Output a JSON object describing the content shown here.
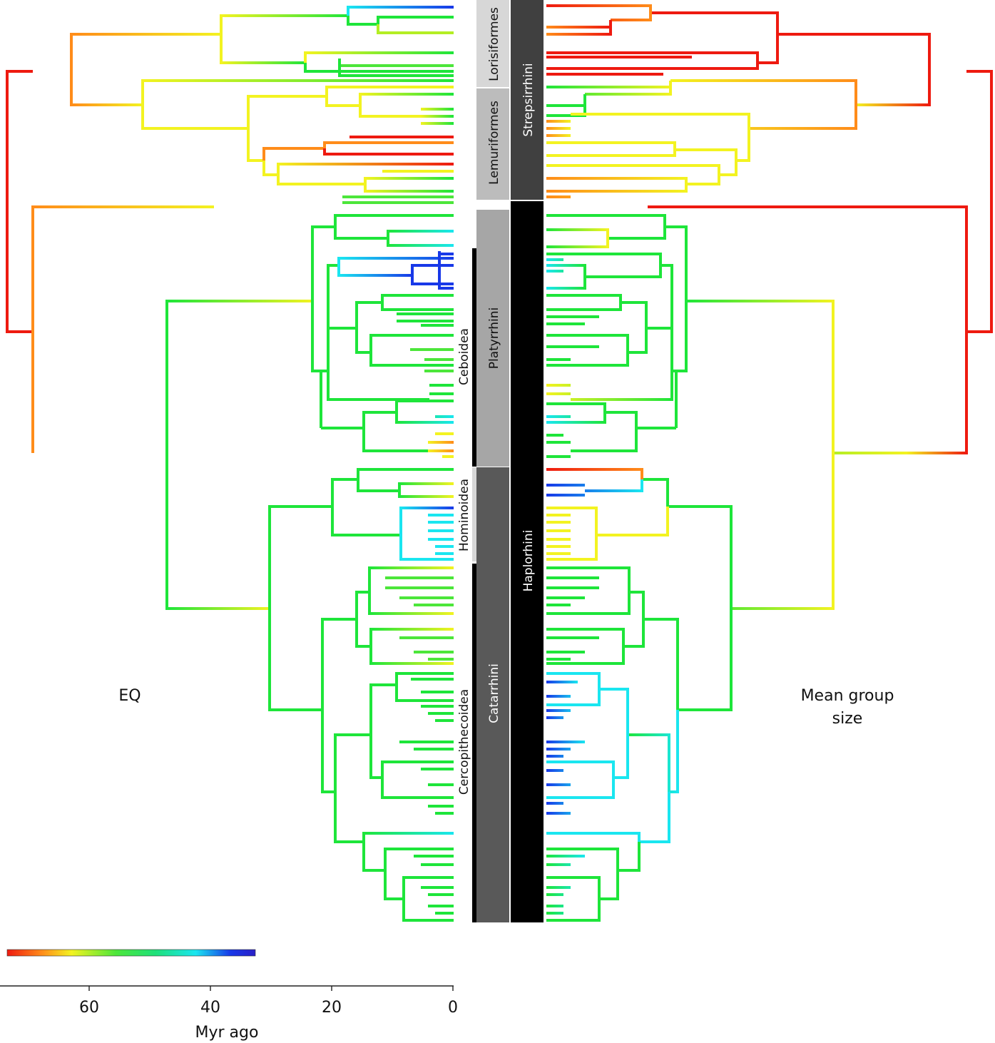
{
  "left_panel_label": "EQ",
  "right_panel_label_line1": "Mean group",
  "right_panel_label_line2": "size",
  "axis": {
    "label": "Myr ago",
    "ticks": [
      "60",
      "40",
      "20",
      "0"
    ],
    "tick_values": [
      60,
      40,
      20,
      0
    ]
  },
  "clades": {
    "order_level": [
      "Lorisiformes",
      "Lemuriformes",
      "Platyrrhini",
      "Catarrhini"
    ],
    "superfamily_level": [
      "Ceboidea",
      "Hominoidea",
      "Cercopithecoidea"
    ],
    "suborder_level": [
      "Strepsirrhini",
      "Haplorhini"
    ]
  },
  "colors": {
    "red": "#ee1a10",
    "orange": "#ff8c1a",
    "yellow": "#f3f321",
    "yellow_green": "#b4ee24",
    "green": "#1ee53a",
    "cyan": "#1ae6f0",
    "blue": "#1838e8",
    "dark_blue": "#2a20c8",
    "clade_light": "#d7d7d7",
    "clade_mid": "#a6a6a6",
    "clade_dark": "#595959",
    "clade_darker": "#404040",
    "clade_black": "#000000"
  },
  "color_scale": [
    "#ee1a10",
    "#ff8c1a",
    "#f3f321",
    "#4ce63a",
    "#1ee07a",
    "#1ae6f0",
    "#1838e8",
    "#2a20c8"
  ]
}
